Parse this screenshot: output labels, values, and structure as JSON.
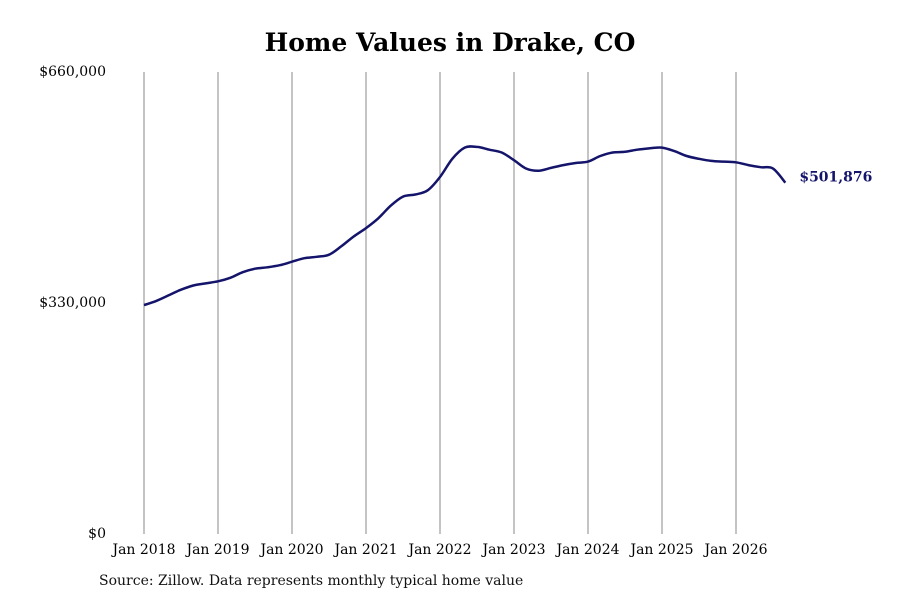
{
  "source_note": "Source: Zillow. Data represents monthly typical home value",
  "colors": {
    "line": "#14146b",
    "grid": "#888888",
    "text": "#000000"
  },
  "chart_data": {
    "type": "line",
    "title": "Home Values in Drake, CO",
    "xlabel": "",
    "ylabel": "",
    "ylim": [
      0,
      660000
    ],
    "y_ticks": [
      0,
      330000,
      660000
    ],
    "y_tick_labels": [
      "$0",
      "$330,000",
      "$660,000"
    ],
    "x_ticks": [
      "2018-01",
      "2019-01",
      "2020-01",
      "2021-01",
      "2022-01",
      "2023-01",
      "2024-01",
      "2025-01",
      "2026-01"
    ],
    "x_tick_labels": [
      "Jan 2018",
      "Jan 2019",
      "Jan 2020",
      "Jan 2021",
      "Jan 2022",
      "Jan 2023",
      "Jan 2024",
      "Jan 2025",
      "Jan 2026"
    ],
    "x_range": [
      "2018-01",
      "2026-09"
    ],
    "vertical_grid": true,
    "end_label": "$501,876",
    "series": [
      {
        "x": [
          "2018-01",
          "2018-03",
          "2018-05",
          "2018-07",
          "2018-09",
          "2018-11",
          "2019-01",
          "2019-03",
          "2019-05",
          "2019-07",
          "2019-09",
          "2019-11",
          "2020-01",
          "2020-03",
          "2020-05",
          "2020-07",
          "2020-09",
          "2020-11",
          "2021-01",
          "2021-03",
          "2021-05",
          "2021-07",
          "2021-09",
          "2021-11",
          "2022-01",
          "2022-03",
          "2022-05",
          "2022-07",
          "2022-09",
          "2022-11",
          "2023-01",
          "2023-03",
          "2023-05",
          "2023-07",
          "2023-09",
          "2023-11",
          "2024-01",
          "2024-03",
          "2024-05",
          "2024-07",
          "2024-09",
          "2024-11",
          "2025-01",
          "2025-03",
          "2025-05",
          "2025-07",
          "2025-09",
          "2025-11",
          "2026-01",
          "2026-03",
          "2026-05",
          "2026-07",
          "2026-09"
        ],
        "values": [
          327000,
          333000,
          341000,
          349000,
          355000,
          358000,
          361000,
          366000,
          374000,
          379000,
          381000,
          384000,
          389000,
          394000,
          396000,
          399000,
          411000,
          425000,
          437000,
          451000,
          469000,
          482000,
          485000,
          491000,
          510000,
          536000,
          552000,
          553000,
          549000,
          545000,
          534000,
          522000,
          519000,
          523000,
          527000,
          530000,
          532000,
          540000,
          545000,
          546000,
          549000,
          551000,
          552000,
          547000,
          540000,
          536000,
          533000,
          532000,
          531000,
          527000,
          524000,
          522000,
          501876
        ]
      }
    ]
  }
}
